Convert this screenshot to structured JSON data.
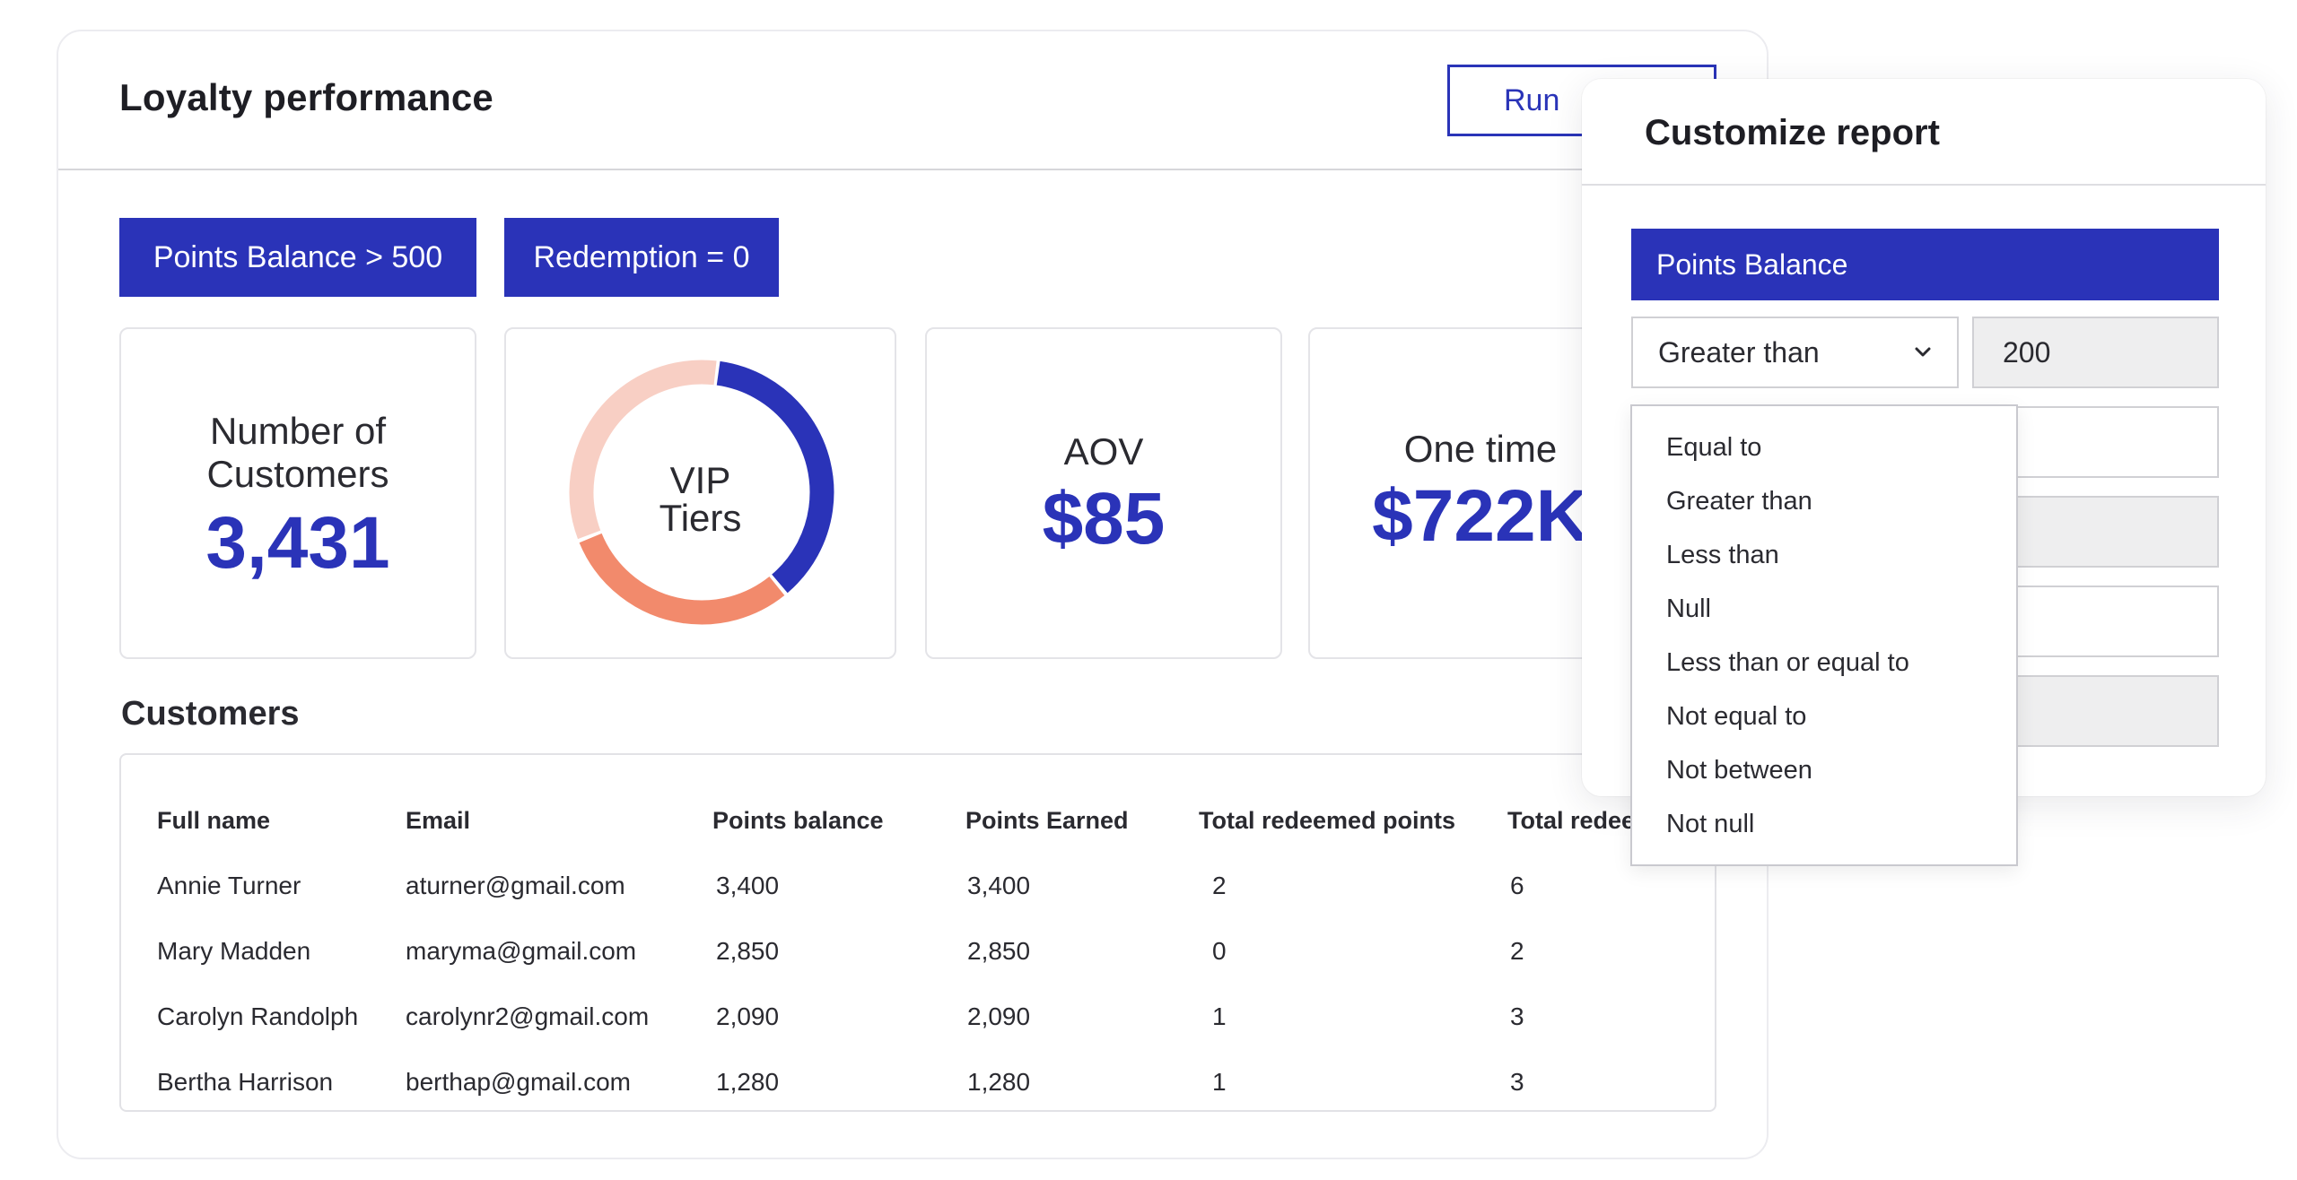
{
  "report": {
    "title": "Loyalty performance",
    "run_label": "Run"
  },
  "filters": [
    {
      "label": "Points Balance > 500"
    },
    {
      "label": "Redemption = 0"
    }
  ],
  "stats": {
    "customers": {
      "label_line1": "Number of",
      "label_line2": "Customers",
      "value": "3,431"
    },
    "vip": {
      "label_line1": "VIP",
      "label_line2": "Tiers",
      "segments": [
        {
          "fraction": 0.37,
          "color": "#2a33b8"
        },
        {
          "fraction": 0.3,
          "color": "#f28a6c"
        },
        {
          "fraction": 0.33,
          "color": "#f8cfc4"
        }
      ]
    },
    "aov": {
      "label": "AOV",
      "value": "$85"
    },
    "one_time": {
      "label": "One time",
      "value": "$722K"
    }
  },
  "customers": {
    "title": "Customers",
    "columns": [
      "Full name",
      "Email",
      "Points balance",
      "Points Earned",
      "Total redeemed points",
      "Total redee"
    ],
    "rows": [
      [
        "Annie Turner",
        "aturner@gmail.com",
        "3,400",
        "3,400",
        "2",
        "6"
      ],
      [
        "Mary Madden",
        "maryma@gmail.com",
        "2,850",
        "2,850",
        "0",
        "2"
      ],
      [
        "Carolyn Randolph",
        "carolynr2@gmail.com",
        "2,090",
        "2,090",
        "1",
        "3"
      ],
      [
        "Bertha Harrison",
        "berthap@gmail.com",
        "1,280",
        "1,280",
        "1",
        "3"
      ]
    ]
  },
  "customize": {
    "title": "Customize report",
    "field": "Points Balance",
    "operator": "Greater than",
    "value": "200",
    "options": [
      "Equal to",
      "Greater than",
      "Less than",
      "Null",
      "Less than or equal to",
      "Not equal to",
      "Not between",
      "Not null"
    ]
  },
  "colors": {
    "accent": "#2a33b8",
    "salmon": "#f28a6c",
    "peach": "#f8cfc4"
  }
}
